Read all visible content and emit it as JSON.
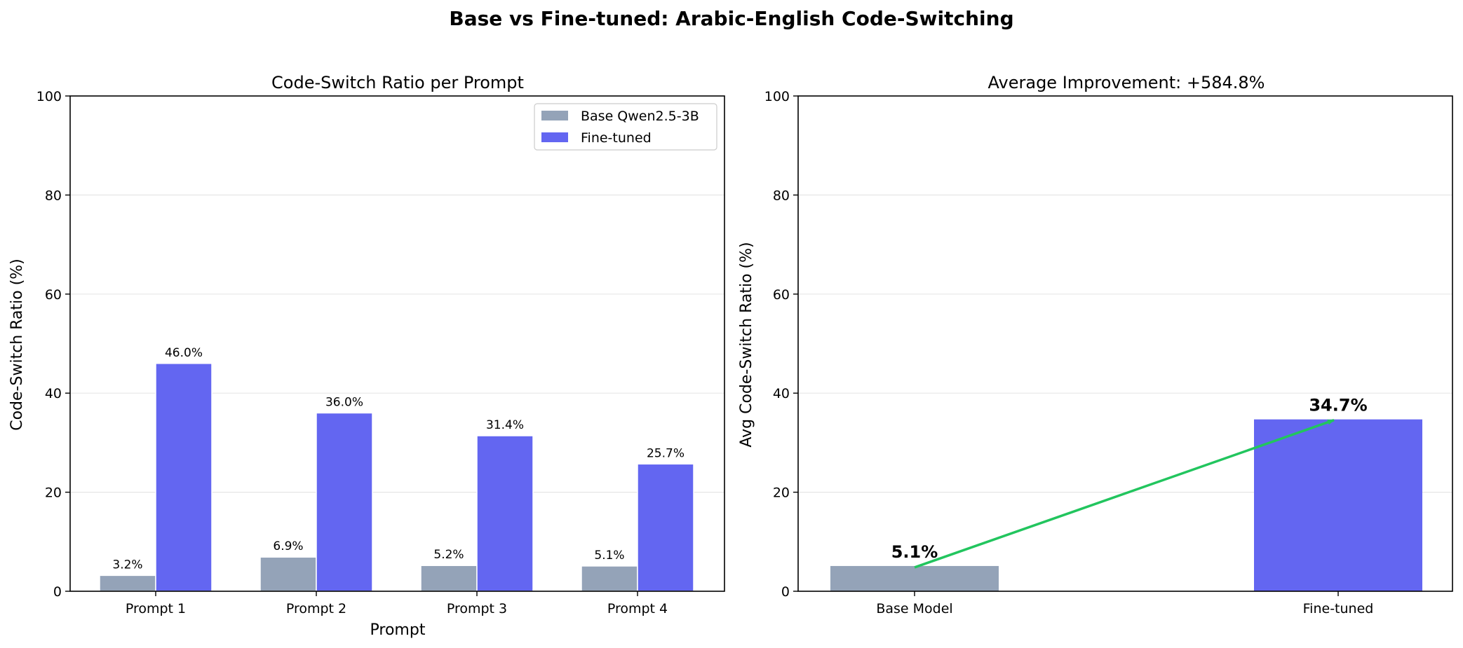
{
  "figure": {
    "title": "Base vs Fine-tuned: Arabic-English Code-Switching"
  },
  "chart_data": [
    {
      "type": "bar",
      "title": "Code-Switch Ratio per Prompt",
      "xlabel": "Prompt",
      "ylabel": "Code-Switch Ratio (%)",
      "ylim": [
        0,
        100
      ],
      "yticks": [
        "0",
        "20",
        "40",
        "60",
        "80",
        "100"
      ],
      "grid": "y",
      "legend_position": "top-right",
      "categories": [
        "Prompt 1",
        "Prompt 2",
        "Prompt 3",
        "Prompt 4"
      ],
      "series": [
        {
          "name": "Base Qwen2.5-3B",
          "color": "#94a3b8",
          "values": [
            3.2,
            6.9,
            5.2,
            5.1
          ],
          "labels": [
            "3.2%",
            "6.9%",
            "5.2%",
            "5.1%"
          ]
        },
        {
          "name": "Fine-tuned",
          "color": "#6366f1",
          "values": [
            46.0,
            36.0,
            31.4,
            25.7
          ],
          "labels": [
            "46.0%",
            "36.0%",
            "31.4%",
            "25.7%"
          ]
        }
      ]
    },
    {
      "type": "bar",
      "title": "Average Improvement: +584.8%",
      "xlabel": "",
      "ylabel": "Avg Code-Switch Ratio (%)",
      "ylim": [
        0,
        100
      ],
      "yticks": [
        "0",
        "20",
        "40",
        "60",
        "80",
        "100"
      ],
      "grid": "y",
      "categories": [
        "Base Model",
        "Fine-tuned"
      ],
      "values": [
        5.1,
        34.7
      ],
      "labels": [
        "5.1%",
        "34.7%"
      ],
      "colors": [
        "#94a3b8",
        "#6366f1"
      ],
      "arrow_color": "#22c55e"
    }
  ]
}
